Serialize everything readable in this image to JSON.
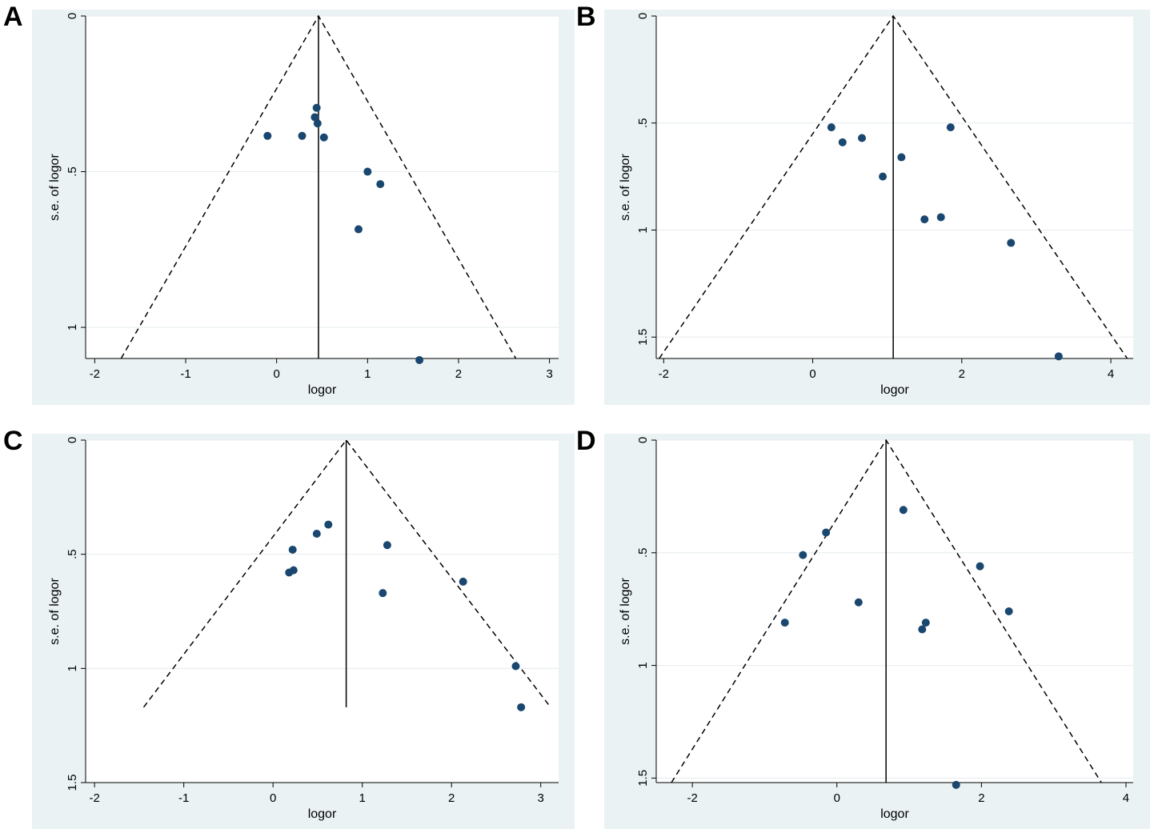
{
  "chart_data": [
    {
      "panel": "A",
      "type": "scatter",
      "xlabel": "logor",
      "ylabel": "s.e. of logor",
      "xlim": [
        -2.1,
        3.1
      ],
      "ylim": [
        0,
        1.1
      ],
      "y_reversed": true,
      "xticks": [
        -2,
        -1,
        0,
        1,
        2,
        3
      ],
      "yticks": [
        0,
        0.5,
        1
      ],
      "ytick_labels": [
        "0",
        ".5",
        "1"
      ],
      "pooled_estimate": 0.46,
      "funnel_max_se": 1.1,
      "funnel_left_end": -1.71,
      "funnel_right_end": 2.63,
      "points": [
        {
          "x": -0.1,
          "y": 0.385
        },
        {
          "x": 0.28,
          "y": 0.385
        },
        {
          "x": 0.42,
          "y": 0.325
        },
        {
          "x": 0.44,
          "y": 0.295
        },
        {
          "x": 0.45,
          "y": 0.345
        },
        {
          "x": 0.52,
          "y": 0.39
        },
        {
          "x": 1.0,
          "y": 0.5
        },
        {
          "x": 1.14,
          "y": 0.54
        },
        {
          "x": 0.9,
          "y": 0.685
        },
        {
          "x": 1.57,
          "y": 1.105
        }
      ]
    },
    {
      "panel": "B",
      "type": "scatter",
      "xlabel": "logor",
      "ylabel": "s.e. of logor",
      "xlim": [
        -2.1,
        4.3
      ],
      "ylim": [
        0,
        1.6
      ],
      "y_reversed": true,
      "xticks": [
        -2,
        0,
        2,
        4
      ],
      "yticks": [
        0,
        0.5,
        1,
        1.5
      ],
      "ytick_labels": [
        "0",
        ".5",
        "1",
        "1.5"
      ],
      "pooled_estimate": 1.08,
      "funnel_max_se": 1.6,
      "funnel_left_end": -2.06,
      "funnel_right_end": 4.22,
      "points": [
        {
          "x": 0.25,
          "y": 0.52
        },
        {
          "x": 0.4,
          "y": 0.59
        },
        {
          "x": 0.66,
          "y": 0.57
        },
        {
          "x": 0.94,
          "y": 0.75
        },
        {
          "x": 1.19,
          "y": 0.66
        },
        {
          "x": 1.5,
          "y": 0.95
        },
        {
          "x": 1.72,
          "y": 0.94
        },
        {
          "x": 1.85,
          "y": 0.52
        },
        {
          "x": 2.66,
          "y": 1.06
        },
        {
          "x": 3.3,
          "y": 1.59
        }
      ]
    },
    {
      "panel": "C",
      "type": "scatter",
      "xlabel": "logor",
      "ylabel": "s.e. of logor",
      "xlim": [
        -2.1,
        3.2
      ],
      "ylim": [
        0,
        1.5
      ],
      "y_reversed": true,
      "xticks": [
        -2,
        -1,
        0,
        1,
        2,
        3
      ],
      "yticks": [
        0,
        0.5,
        1,
        1.5
      ],
      "ytick_labels": [
        "0",
        ".5",
        "1",
        "1.5"
      ],
      "pooled_estimate": 0.82,
      "funnel_max_se": 1.17,
      "funnel_left_end": -1.45,
      "funnel_right_end": 3.11,
      "points": [
        {
          "x": 0.18,
          "y": 0.58
        },
        {
          "x": 0.22,
          "y": 0.48
        },
        {
          "x": 0.23,
          "y": 0.57
        },
        {
          "x": 0.49,
          "y": 0.41
        },
        {
          "x": 0.62,
          "y": 0.37
        },
        {
          "x": 1.23,
          "y": 0.67
        },
        {
          "x": 1.28,
          "y": 0.46
        },
        {
          "x": 2.13,
          "y": 0.62
        },
        {
          "x": 2.72,
          "y": 0.99
        },
        {
          "x": 2.78,
          "y": 1.17
        }
      ]
    },
    {
      "panel": "D",
      "type": "scatter",
      "xlabel": "logor",
      "ylabel": "s.e. of logor",
      "xlim": [
        -2.5,
        4.1
      ],
      "ylim": [
        0,
        1.52
      ],
      "y_reversed": true,
      "xticks": [
        -2,
        0,
        2,
        4
      ],
      "yticks": [
        0,
        0.5,
        1,
        1.5
      ],
      "ytick_labels": [
        "0",
        ".5",
        "1",
        "1.5"
      ],
      "pooled_estimate": 0.68,
      "funnel_max_se": 1.52,
      "funnel_left_end": -2.29,
      "funnel_right_end": 3.66,
      "points": [
        {
          "x": -0.72,
          "y": 0.81
        },
        {
          "x": -0.47,
          "y": 0.51
        },
        {
          "x": -0.15,
          "y": 0.41
        },
        {
          "x": 0.3,
          "y": 0.72
        },
        {
          "x": 0.92,
          "y": 0.31
        },
        {
          "x": 1.18,
          "y": 0.84
        },
        {
          "x": 1.23,
          "y": 0.81
        },
        {
          "x": 1.65,
          "y": 1.53
        },
        {
          "x": 1.98,
          "y": 0.56
        },
        {
          "x": 2.38,
          "y": 0.76
        }
      ]
    }
  ],
  "colors": {
    "outer_background": "#eaf2f3",
    "plot_background": "#ffffff",
    "grid": "#e6ecee",
    "marker": "#1a476f",
    "lines": "#000000"
  }
}
